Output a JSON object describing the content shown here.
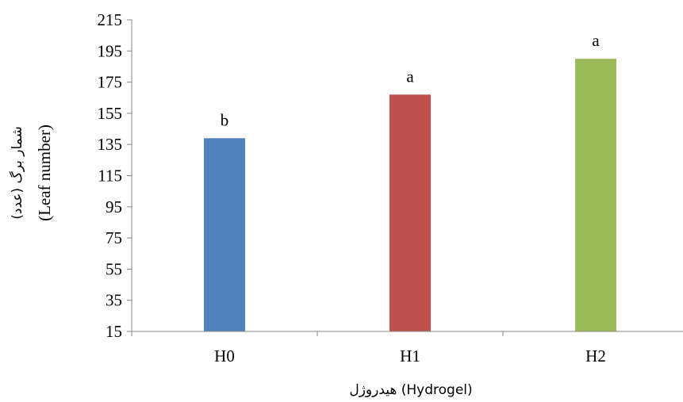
{
  "chart_data": {
    "type": "bar",
    "categories": [
      "H0",
      "H1",
      "H2"
    ],
    "values": [
      139,
      167,
      190
    ],
    "bar_labels": [
      "b",
      "a",
      "a"
    ],
    "colors": [
      "#4F81BD",
      "#C0504D",
      "#9BBB59"
    ],
    "ylim": [
      15,
      215
    ],
    "yticks": [
      15,
      35,
      55,
      75,
      95,
      115,
      135,
      155,
      175,
      195,
      215
    ],
    "ylabel_fa": "شمار برگ (عدد)",
    "ylabel_en": "(Leaf number)",
    "xlabel": "هیدروژل (Hydrogel)",
    "grid": false
  }
}
